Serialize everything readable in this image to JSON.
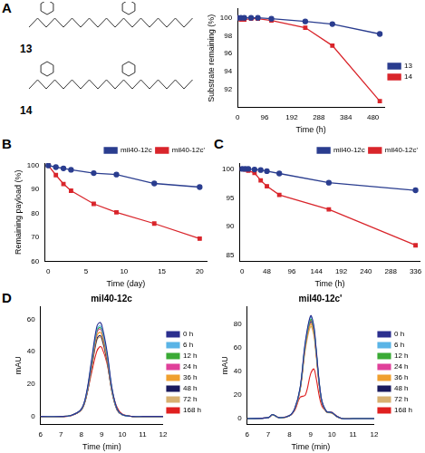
{
  "panel_labels": [
    "A",
    "B",
    "C",
    "D"
  ],
  "structures": [
    {
      "label": "13"
    },
    {
      "label": "14"
    }
  ],
  "chart_data": [
    {
      "type": "line",
      "x_label": "Time (h)",
      "y_label": "Substrate remaining (%)",
      "x": [
        0,
        12,
        24,
        48,
        72,
        120,
        240,
        336,
        504
      ],
      "xlim": [
        0,
        520
      ],
      "xticks": [
        0,
        96,
        192,
        288,
        384,
        480
      ],
      "ylim": [
        90,
        101
      ],
      "yticks": [
        92,
        94,
        96,
        98,
        100
      ],
      "grid": false,
      "legend": "right",
      "series": [
        {
          "name": "13",
          "color": "#2a3d8f",
          "marker": "circle",
          "values": [
            100,
            100,
            100,
            100,
            100,
            99.9,
            99.6,
            99.3,
            98.2
          ]
        },
        {
          "name": "14",
          "color": "#d9252b",
          "marker": "square",
          "values": [
            100,
            99.8,
            99.8,
            99.9,
            99.9,
            99.7,
            98.9,
            96.9,
            90.7
          ]
        }
      ]
    },
    {
      "type": "line",
      "x_label": "Time (day)",
      "y_label": "Remaining payload (%)",
      "x": [
        0,
        1,
        2,
        3,
        6,
        9,
        14,
        20
      ],
      "xlim": [
        -0.5,
        21
      ],
      "xticks": [
        0,
        5,
        10,
        15,
        20
      ],
      "ylim": [
        60,
        101
      ],
      "yticks": [
        60,
        70,
        80,
        90,
        100
      ],
      "grid": false,
      "legend": "top right",
      "series": [
        {
          "name": "mil40-12c",
          "color": "#2a3d8f",
          "marker": "circle",
          "values": [
            100,
            99.3,
            98.8,
            98.2,
            96.8,
            96.2,
            92.5,
            91
          ]
        },
        {
          "name": "mil40-12c'",
          "color": "#d9252b",
          "marker": "square",
          "values": [
            100,
            96,
            92.3,
            89.5,
            84,
            80.5,
            75.8,
            69.5
          ]
        }
      ]
    },
    {
      "type": "line",
      "x_label": "Time (h)",
      "x": [
        0,
        6,
        12,
        24,
        36,
        48,
        72,
        168,
        336
      ],
      "xlim": [
        -5,
        345
      ],
      "xticks": [
        0,
        48,
        96,
        144,
        192,
        240,
        288,
        336
      ],
      "ylim": [
        84,
        101
      ],
      "yticks": [
        85,
        90,
        95,
        100
      ],
      "grid": false,
      "legend": "top right",
      "series": [
        {
          "name": "mil40-12c",
          "color": "#2a3d8f",
          "marker": "circle",
          "values": [
            100,
            100,
            100,
            99.9,
            99.8,
            99.6,
            99.2,
            97.6,
            96.3
          ]
        },
        {
          "name": "mil40-12c'",
          "color": "#d9252b",
          "marker": "square",
          "values": [
            100,
            99.9,
            99.7,
            99.3,
            98,
            97,
            95.5,
            93,
            86.8
          ]
        }
      ]
    },
    {
      "type": "line",
      "title": "mil40-12c",
      "x_label": "Time (min)",
      "y_label": "mAU",
      "x": [
        6,
        7,
        7.5,
        8,
        8.25,
        8.5,
        8.75,
        8.9,
        9.0,
        9.25,
        9.5,
        9.75,
        10,
        10.5,
        11,
        12
      ],
      "xlim": [
        6,
        12
      ],
      "xticks": [
        6,
        7,
        8,
        9,
        10,
        11,
        12
      ],
      "ylim": [
        -5,
        68
      ],
      "yticks": [
        0,
        20,
        40,
        60
      ],
      "grid": false,
      "legend": "right",
      "series": [
        {
          "name": "0 h",
          "color": "#2b2f8f",
          "marker": "none",
          "values": [
            0,
            0,
            0.6,
            4.6,
            14.5,
            34.8,
            55.1,
            58,
            56.3,
            40.6,
            17.4,
            4.6,
            1.2,
            0,
            0,
            0
          ]
        },
        {
          "name": "6 h",
          "color": "#5ab4e6",
          "marker": "none",
          "values": [
            0,
            0,
            0.6,
            4.5,
            14,
            33.6,
            53.2,
            56,
            54.3,
            39.2,
            16.8,
            4.5,
            1.1,
            0,
            0,
            0
          ]
        },
        {
          "name": "12 h",
          "color": "#3aaa35",
          "marker": "none",
          "values": [
            0,
            0,
            0.6,
            4.4,
            13.8,
            33,
            52.3,
            55,
            53.4,
            38.5,
            16.5,
            4.4,
            1.1,
            0,
            0,
            0
          ]
        },
        {
          "name": "24 h",
          "color": "#e0409a",
          "marker": "none",
          "values": [
            0,
            0,
            0.5,
            4.3,
            13.5,
            32.4,
            51.3,
            54,
            52.4,
            37.8,
            16.2,
            4.3,
            1.1,
            0,
            0,
            0
          ]
        },
        {
          "name": "36 h",
          "color": "#f0a030",
          "marker": "none",
          "values": [
            0,
            0,
            0.5,
            4.2,
            13,
            31.2,
            49.4,
            52,
            50.4,
            36.4,
            15.6,
            4.2,
            1,
            0,
            0,
            0
          ]
        },
        {
          "name": "48 h",
          "color": "#1a1a5e",
          "marker": "none",
          "values": [
            0,
            0,
            0.5,
            4,
            12.5,
            30,
            47.5,
            50,
            48.5,
            35,
            15,
            4,
            1,
            0,
            0,
            0
          ]
        },
        {
          "name": "72 h",
          "color": "#d8b070",
          "marker": "none",
          "values": [
            0,
            0,
            0.5,
            3.9,
            12.3,
            29.4,
            46.6,
            49,
            47.5,
            34.3,
            14.7,
            3.9,
            1,
            0,
            0,
            0
          ]
        },
        {
          "name": "168 h",
          "color": "#e02020",
          "marker": "none",
          "values": [
            0,
            0,
            0.6,
            4.5,
            13,
            27,
            40,
            43,
            42.5,
            33,
            16,
            5.5,
            1.5,
            0,
            0,
            0
          ]
        }
      ]
    },
    {
      "type": "line",
      "title": "mil40-12c'",
      "x_label": "Time (min)",
      "y_label": "mAU",
      "x": [
        6,
        7,
        7.2,
        7.5,
        8,
        8.25,
        8.5,
        8.75,
        9.0,
        9.15,
        9.25,
        9.5,
        9.75,
        10,
        10.25,
        10.5,
        11,
        12
      ],
      "xlim": [
        6,
        12
      ],
      "xticks": [
        6,
        7,
        8,
        9,
        10,
        11,
        12
      ],
      "ylim": [
        -5,
        95
      ],
      "yticks": [
        0,
        20,
        40,
        60,
        80
      ],
      "grid": false,
      "legend": "right",
      "series": [
        {
          "name": "0 h",
          "color": "#2b2f8f",
          "marker": "none",
          "values": [
            0,
            0.9,
            3.5,
            0.9,
            2.6,
            8.7,
            26.1,
            65.3,
            87,
            78.3,
            60.9,
            17.4,
            6.1,
            5.2,
            1.7,
            0,
            0,
            0
          ]
        },
        {
          "name": "6 h",
          "color": "#5ab4e6",
          "marker": "none",
          "values": [
            0,
            0.9,
            3.4,
            0.9,
            2.6,
            8.6,
            25.8,
            64.5,
            86,
            77.4,
            60.2,
            17.2,
            6,
            5.2,
            1.7,
            0,
            0,
            0
          ]
        },
        {
          "name": "12 h",
          "color": "#3aaa35",
          "marker": "none",
          "values": [
            0,
            0.8,
            3.4,
            0.8,
            2.5,
            8.4,
            25.2,
            63,
            84,
            75.6,
            58.8,
            16.8,
            5.9,
            5,
            1.7,
            0,
            0,
            0
          ]
        },
        {
          "name": "24 h",
          "color": "#e0409a",
          "marker": "none",
          "values": [
            0,
            0.8,
            3.3,
            0.8,
            2.5,
            8.3,
            24.9,
            62.3,
            83,
            74.7,
            58.1,
            16.6,
            5.8,
            5,
            1.7,
            0,
            0,
            0
          ]
        },
        {
          "name": "36 h",
          "color": "#f0a030",
          "marker": "none",
          "values": [
            0,
            0.8,
            3.2,
            0.8,
            2.4,
            8,
            24,
            60,
            80,
            72,
            56,
            16,
            5.6,
            4.8,
            1.6,
            0,
            0,
            0
          ]
        },
        {
          "name": "48 h",
          "color": "#1a1a5e",
          "marker": "none",
          "values": [
            0,
            0.8,
            3.3,
            0.8,
            2.5,
            8.2,
            24.6,
            61.5,
            82,
            73.8,
            57.4,
            16.4,
            5.7,
            4.9,
            1.6,
            0,
            0,
            0
          ]
        },
        {
          "name": "72 h",
          "color": "#d8b070",
          "marker": "none",
          "values": [
            0,
            0.8,
            3.1,
            0.8,
            2.3,
            7.8,
            23.4,
            58.5,
            78,
            70.2,
            54.6,
            15.6,
            5.5,
            4.7,
            1.6,
            0,
            0,
            0
          ]
        },
        {
          "name": "168 h",
          "color": "#e02020",
          "marker": "none",
          "values": [
            0,
            1,
            3.5,
            1,
            2.5,
            7,
            18,
            20,
            38,
            42,
            35,
            12,
            6,
            5.5,
            2,
            0,
            0,
            0
          ]
        }
      ]
    }
  ]
}
